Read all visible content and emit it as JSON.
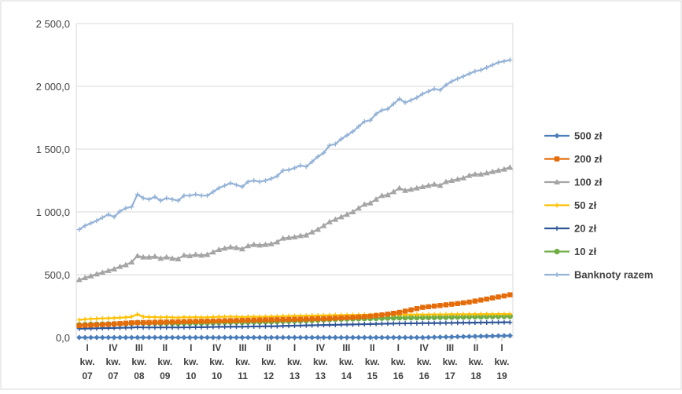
{
  "chart_data": {
    "type": "line",
    "ylim": [
      0,
      2500
    ],
    "yticks": [
      "0,0",
      "500,0",
      "1 000,0",
      "1 500,0",
      "2 000,0",
      "2 500,0"
    ],
    "xtick_labels": [
      {
        "q": "I",
        "kw": "kw.",
        "yr": "07"
      },
      {
        "q": "IV",
        "kw": "kw.",
        "yr": "07"
      },
      {
        "q": "III",
        "kw": "kw.",
        "yr": "08"
      },
      {
        "q": "II",
        "kw": "kw.",
        "yr": "09"
      },
      {
        "q": "I",
        "kw": "kw.",
        "yr": "10"
      },
      {
        "q": "IV",
        "kw": "kw.",
        "yr": "10"
      },
      {
        "q": "III",
        "kw": "kw.",
        "yr": "11"
      },
      {
        "q": "II",
        "kw": "kw.",
        "yr": "12"
      },
      {
        "q": "I",
        "kw": "kw.",
        "yr": "13"
      },
      {
        "q": "IV",
        "kw": "kw.",
        "yr": "13"
      },
      {
        "q": "III",
        "kw": "kw.",
        "yr": "14"
      },
      {
        "q": "II",
        "kw": "kw.",
        "yr": "15"
      },
      {
        "q": "I",
        "kw": "kw.",
        "yr": "16"
      },
      {
        "q": "IV",
        "kw": "kw.",
        "yr": "16"
      },
      {
        "q": "III",
        "kw": "kw.",
        "yr": "17"
      },
      {
        "q": "II",
        "kw": "kw.",
        "yr": "18"
      },
      {
        "q": "I",
        "kw": "kw.",
        "yr": "19"
      }
    ],
    "grid": true,
    "legend_position": "right",
    "series": [
      {
        "name": "500 zł",
        "color": "#4a7ebb",
        "marker": "diamond",
        "values": [
          0,
          0,
          0,
          0,
          0,
          0,
          0,
          0,
          0,
          0,
          0,
          0,
          0,
          0,
          0,
          0,
          0,
          0,
          0,
          0,
          0,
          0,
          0,
          0,
          0,
          0,
          0,
          0,
          0,
          0,
          0,
          0,
          0,
          0,
          0,
          0,
          0,
          0,
          0,
          0,
          0,
          0,
          0,
          0,
          0,
          0,
          0,
          0,
          0,
          0,
          0,
          0,
          0,
          0,
          0,
          0,
          0,
          0,
          0,
          0,
          1,
          2,
          3,
          4,
          5,
          6,
          7,
          8,
          9,
          10,
          11,
          12,
          13,
          14,
          15
        ]
      },
      {
        "name": "200 zł",
        "color": "#e46c0a",
        "marker": "square",
        "values": [
          95,
          97,
          99,
          101,
          103,
          105,
          108,
          111,
          114,
          117,
          118,
          119,
          120,
          121,
          122,
          123,
          124,
          125,
          126,
          127,
          128,
          129,
          130,
          131,
          132,
          133,
          134,
          135,
          136,
          137,
          138,
          139,
          140,
          141,
          142,
          143,
          144,
          145,
          146,
          147,
          148,
          149,
          150,
          152,
          154,
          156,
          158,
          160,
          163,
          166,
          170,
          175,
          180,
          186,
          193,
          200,
          210,
          220,
          230,
          240,
          245,
          250,
          255,
          260,
          265,
          270,
          276,
          282,
          290,
          298,
          306,
          315,
          323,
          331,
          340
        ]
      },
      {
        "name": "100 zł",
        "color": "#a5a5a5",
        "marker": "triangle",
        "values": [
          460,
          475,
          490,
          505,
          518,
          532,
          545,
          565,
          578,
          600,
          650,
          640,
          640,
          645,
          630,
          640,
          630,
          625,
          655,
          650,
          660,
          655,
          660,
          680,
          700,
          710,
          720,
          715,
          705,
          730,
          740,
          735,
          740,
          745,
          760,
          790,
          795,
          800,
          810,
          815,
          840,
          860,
          890,
          920,
          940,
          960,
          980,
          1000,
          1030,
          1060,
          1070,
          1100,
          1130,
          1135,
          1160,
          1190,
          1170,
          1180,
          1190,
          1200,
          1210,
          1220,
          1210,
          1240,
          1250,
          1260,
          1270,
          1290,
          1300,
          1300,
          1310,
          1320,
          1330,
          1340,
          1355
        ]
      },
      {
        "name": "50 zł",
        "color": "#ffc000",
        "marker": "plus",
        "values": [
          140,
          145,
          148,
          150,
          152,
          153,
          155,
          158,
          160,
          165,
          185,
          165,
          163,
          162,
          160,
          162,
          160,
          158,
          162,
          160,
          162,
          160,
          161,
          163,
          165,
          165,
          166,
          165,
          163,
          165,
          166,
          165,
          166,
          167,
          168,
          170,
          171,
          172,
          173,
          173,
          174,
          175,
          176,
          177,
          178,
          178,
          179,
          180,
          180,
          181,
          180,
          181,
          182,
          182,
          182,
          183,
          182,
          182,
          183,
          183,
          183,
          184,
          184,
          184,
          185,
          185,
          185,
          185,
          186,
          186,
          186,
          186,
          187,
          187,
          187
        ]
      },
      {
        "name": "20 zł",
        "color": "#2e5597",
        "marker": "plus",
        "values": [
          70,
          71,
          72,
          73,
          74,
          75,
          76,
          77,
          78,
          79,
          82,
          80,
          80,
          80,
          80,
          80,
          80,
          80,
          81,
          81,
          82,
          82,
          83,
          84,
          85,
          85,
          86,
          86,
          86,
          87,
          88,
          88,
          89,
          89,
          90,
          92,
          93,
          94,
          95,
          96,
          97,
          98,
          99,
          100,
          101,
          102,
          103,
          104,
          105,
          106,
          107,
          108,
          109,
          110,
          111,
          112,
          112,
          113,
          113,
          114,
          114,
          115,
          115,
          116,
          116,
          117,
          117,
          118,
          118,
          119,
          119,
          120,
          120,
          121,
          121
        ]
      },
      {
        "name": "10 zł",
        "color": "#70ad47",
        "marker": "circle",
        "values": [
          100,
          102,
          104,
          105,
          106,
          107,
          108,
          109,
          110,
          112,
          118,
          114,
          114,
          114,
          113,
          114,
          113,
          113,
          115,
          115,
          116,
          116,
          117,
          118,
          120,
          121,
          122,
          122,
          121,
          123,
          124,
          124,
          125,
          126,
          127,
          130,
          131,
          132,
          134,
          135,
          137,
          139,
          141,
          143,
          145,
          147,
          148,
          149,
          150,
          151,
          152,
          153,
          154,
          155,
          156,
          157,
          157,
          158,
          158,
          159,
          160,
          160,
          161,
          161,
          162,
          163,
          163,
          164,
          165,
          165,
          166,
          167,
          168,
          168,
          169
        ]
      },
      {
        "name": "Banknoty razem",
        "color": "#95b3d7",
        "marker": "plus",
        "values": [
          860,
          890,
          910,
          930,
          955,
          980,
          960,
          1005,
          1030,
          1040,
          1140,
          1110,
          1100,
          1120,
          1090,
          1110,
          1100,
          1090,
          1130,
          1130,
          1140,
          1130,
          1130,
          1160,
          1190,
          1210,
          1230,
          1215,
          1200,
          1240,
          1250,
          1240,
          1250,
          1265,
          1285,
          1330,
          1335,
          1350,
          1370,
          1360,
          1400,
          1440,
          1470,
          1530,
          1540,
          1580,
          1610,
          1640,
          1680,
          1720,
          1730,
          1780,
          1810,
          1820,
          1860,
          1900,
          1870,
          1890,
          1910,
          1940,
          1960,
          1980,
          1970,
          2010,
          2040,
          2060,
          2080,
          2100,
          2120,
          2130,
          2150,
          2170,
          2190,
          2200,
          2210
        ]
      }
    ]
  }
}
